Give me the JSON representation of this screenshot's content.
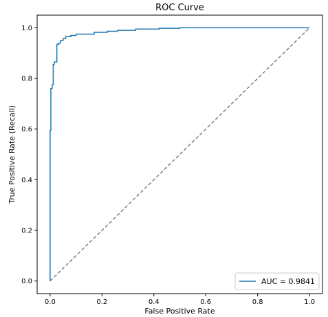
{
  "chart_data": {
    "type": "line",
    "title": "ROC Curve",
    "xlabel": "False Positive Rate",
    "ylabel": "True Positive Rate (Recall)",
    "xlim": [
      -0.05,
      1.05
    ],
    "ylim": [
      -0.05,
      1.05
    ],
    "xticks": [
      0.0,
      0.2,
      0.4,
      0.6,
      0.8,
      1.0
    ],
    "yticks": [
      0.0,
      0.2,
      0.4,
      0.6,
      0.8,
      1.0
    ],
    "xtick_labels": [
      "0.0",
      "0.2",
      "0.4",
      "0.6",
      "0.8",
      "1.0"
    ],
    "ytick_labels": [
      "0.0",
      "0.2",
      "0.4",
      "0.6",
      "0.8",
      "1.0"
    ],
    "grid": false,
    "legend": {
      "position": "lower-right",
      "entries": [
        "AUC = 0.9841"
      ]
    },
    "series": [
      {
        "name": "AUC = 0.9841",
        "style": "solid",
        "color": "#1f77b4",
        "x": [
          0.0,
          0.0,
          0.003,
          0.003,
          0.008,
          0.008,
          0.012,
          0.012,
          0.016,
          0.016,
          0.026,
          0.026,
          0.034,
          0.034,
          0.04,
          0.04,
          0.05,
          0.05,
          0.06,
          0.06,
          0.08,
          0.08,
          0.1,
          0.1,
          0.17,
          0.17,
          0.22,
          0.22,
          0.26,
          0.26,
          0.33,
          0.33,
          0.42,
          0.42,
          0.5,
          0.5,
          1.0
        ],
        "y": [
          0.0,
          0.595,
          0.595,
          0.76,
          0.76,
          0.775,
          0.775,
          0.855,
          0.855,
          0.865,
          0.865,
          0.935,
          0.935,
          0.94,
          0.94,
          0.95,
          0.95,
          0.958,
          0.958,
          0.965,
          0.965,
          0.97,
          0.97,
          0.975,
          0.975,
          0.982,
          0.982,
          0.986,
          0.986,
          0.99,
          0.99,
          0.995,
          0.995,
          0.998,
          0.998,
          1.0,
          1.0
        ]
      },
      {
        "name": "",
        "style": "dashed",
        "color": "#808080",
        "x": [
          0.0,
          1.0
        ],
        "y": [
          0.0,
          1.0
        ]
      }
    ]
  }
}
